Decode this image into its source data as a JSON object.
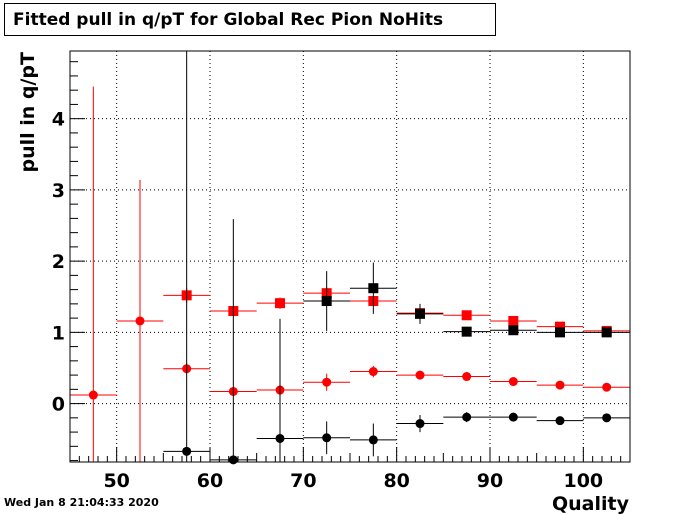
{
  "title": "Fitted pull in q/pT for Global Rec Pion NoHits",
  "timestamp": "Wed Jan  8 21:04:33 2020",
  "chart_data": {
    "type": "scatter",
    "title": "Fitted pull in q/pT for Global Rec Pion NoHits",
    "xlabel": "Quality",
    "ylabel": "pull in q/pT",
    "xlim": [
      45,
      105
    ],
    "ylim": [
      -0.82,
      4.95
    ],
    "x_ticks": [
      50,
      60,
      70,
      80,
      90,
      100
    ],
    "y_ticks": [
      0,
      1,
      2,
      3,
      4
    ],
    "grid": true,
    "bin_halfwidth": 2.5,
    "series": [
      {
        "color": "#ff0000",
        "marker": "square",
        "points": [
          {
            "x": 57.5,
            "y": 1.52,
            "err": 0.1
          },
          {
            "x": 62.5,
            "y": 1.3,
            "err": 0.06
          },
          {
            "x": 67.5,
            "y": 1.41,
            "err": 0.08
          },
          {
            "x": 72.5,
            "y": 1.55,
            "err": 0.08
          },
          {
            "x": 77.5,
            "y": 1.44,
            "err": 0.06
          },
          {
            "x": 82.5,
            "y": 1.27,
            "err": 0.04
          },
          {
            "x": 87.5,
            "y": 1.24,
            "err": 0.03
          },
          {
            "x": 92.5,
            "y": 1.16,
            "err": 0.03
          },
          {
            "x": 97.5,
            "y": 1.08,
            "err": 0.03
          },
          {
            "x": 102.5,
            "y": 1.02,
            "err": 0.02
          }
        ]
      },
      {
        "color": "#ff0000",
        "marker": "circle",
        "points": [
          {
            "x": 47.5,
            "y": 0.12,
            "err": 4.33
          },
          {
            "x": 52.5,
            "y": 1.16,
            "err": 1.98
          },
          {
            "x": 57.5,
            "y": 0.49,
            "err": 0.07
          },
          {
            "x": 62.5,
            "y": 0.17,
            "err": 0.06
          },
          {
            "x": 67.5,
            "y": 0.19,
            "err": 0.1
          },
          {
            "x": 72.5,
            "y": 0.3,
            "err": 0.12
          },
          {
            "x": 77.5,
            "y": 0.45,
            "err": 0.08
          },
          {
            "x": 82.5,
            "y": 0.4,
            "err": 0.05
          },
          {
            "x": 87.5,
            "y": 0.38,
            "err": 0.04
          },
          {
            "x": 92.5,
            "y": 0.31,
            "err": 0.04
          },
          {
            "x": 97.5,
            "y": 0.26,
            "err": 0.03
          },
          {
            "x": 102.5,
            "y": 0.23,
            "err": 0.02
          }
        ]
      },
      {
        "color": "#000000",
        "marker": "square",
        "points": [
          {
            "x": 72.5,
            "y": 1.44,
            "err": 0.42
          },
          {
            "x": 77.5,
            "y": 1.62,
            "err": 0.36
          },
          {
            "x": 82.5,
            "y": 1.26,
            "err": 0.14
          },
          {
            "x": 87.5,
            "y": 1.01,
            "err": 0.04
          },
          {
            "x": 92.5,
            "y": 1.03,
            "err": 0.04
          },
          {
            "x": 97.5,
            "y": 1.0,
            "err": 0.03
          },
          {
            "x": 102.5,
            "y": 1.0,
            "err": 0.03
          }
        ]
      },
      {
        "color": "#000000",
        "marker": "circle",
        "points": [
          {
            "x": 57.5,
            "y": -0.67,
            "err": 6.0
          },
          {
            "x": 62.5,
            "y": -0.79,
            "err": 3.38
          },
          {
            "x": 67.5,
            "y": -0.49,
            "err": 1.68
          },
          {
            "x": 72.5,
            "y": -0.48,
            "err": 0.23
          },
          {
            "x": 77.5,
            "y": -0.51,
            "err": 0.23
          },
          {
            "x": 82.5,
            "y": -0.28,
            "err": 0.12
          },
          {
            "x": 87.5,
            "y": -0.19,
            "err": 0.07
          },
          {
            "x": 92.5,
            "y": -0.19,
            "err": 0.06
          },
          {
            "x": 97.5,
            "y": -0.24,
            "err": 0.05
          },
          {
            "x": 102.5,
            "y": -0.2,
            "err": 0.04
          }
        ]
      }
    ]
  }
}
